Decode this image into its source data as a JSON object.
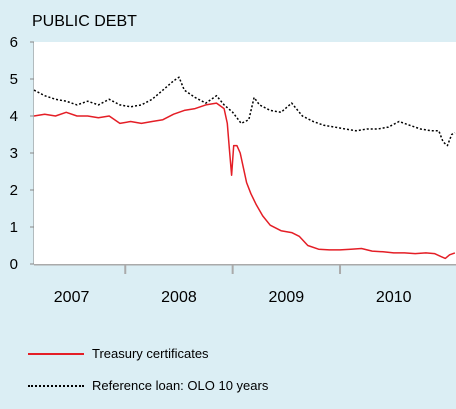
{
  "chart_data": {
    "type": "line",
    "title": "PUBLIC DEBT",
    "xlabel": "",
    "ylabel": "",
    "ylim": [
      0,
      6
    ],
    "y_ticks": [
      "0",
      "1",
      "2",
      "3",
      "4",
      "5",
      "6"
    ],
    "xlim": [
      2006.65,
      2010.58
    ],
    "x_ticks": [
      {
        "label": "2007",
        "pos": 2007.0
      },
      {
        "label": "2008",
        "pos": 2008.0
      },
      {
        "label": "2009",
        "pos": 2009.0
      },
      {
        "label": "2010",
        "pos": 2010.0
      }
    ],
    "x_dividers": [
      2007.5,
      2008.5,
      2009.5
    ],
    "grid": false,
    "legend_position": "bottom",
    "series": [
      {
        "name": "Treasury certificates",
        "color": "#e41e26",
        "style": "solid",
        "points": [
          [
            2006.65,
            4.0
          ],
          [
            2006.75,
            4.05
          ],
          [
            2006.85,
            4.0
          ],
          [
            2006.95,
            4.1
          ],
          [
            2007.05,
            4.0
          ],
          [
            2007.15,
            4.0
          ],
          [
            2007.25,
            3.95
          ],
          [
            2007.35,
            4.0
          ],
          [
            2007.45,
            3.8
          ],
          [
            2007.55,
            3.85
          ],
          [
            2007.65,
            3.8
          ],
          [
            2007.75,
            3.85
          ],
          [
            2007.85,
            3.9
          ],
          [
            2007.95,
            4.05
          ],
          [
            2008.05,
            4.15
          ],
          [
            2008.15,
            4.2
          ],
          [
            2008.25,
            4.3
          ],
          [
            2008.35,
            4.35
          ],
          [
            2008.42,
            4.2
          ],
          [
            2008.45,
            3.8
          ],
          [
            2008.47,
            3.1
          ],
          [
            2008.49,
            2.4
          ],
          [
            2008.51,
            3.2
          ],
          [
            2008.54,
            3.2
          ],
          [
            2008.57,
            3.0
          ],
          [
            2008.6,
            2.6
          ],
          [
            2008.63,
            2.2
          ],
          [
            2008.67,
            1.9
          ],
          [
            2008.72,
            1.6
          ],
          [
            2008.78,
            1.3
          ],
          [
            2008.85,
            1.05
          ],
          [
            2008.95,
            0.9
          ],
          [
            2009.05,
            0.85
          ],
          [
            2009.12,
            0.75
          ],
          [
            2009.2,
            0.5
          ],
          [
            2009.3,
            0.4
          ],
          [
            2009.4,
            0.38
          ],
          [
            2009.5,
            0.38
          ],
          [
            2009.6,
            0.4
          ],
          [
            2009.7,
            0.42
          ],
          [
            2009.8,
            0.35
          ],
          [
            2009.9,
            0.33
          ],
          [
            2010.0,
            0.3
          ],
          [
            2010.1,
            0.3
          ],
          [
            2010.2,
            0.28
          ],
          [
            2010.3,
            0.3
          ],
          [
            2010.38,
            0.28
          ],
          [
            2010.44,
            0.2
          ],
          [
            2010.48,
            0.15
          ],
          [
            2010.52,
            0.25
          ],
          [
            2010.57,
            0.3
          ]
        ]
      },
      {
        "name": "Reference loan: OLO 10 years",
        "color": "#000000",
        "style": "dotted",
        "points": [
          [
            2006.65,
            4.7
          ],
          [
            2006.75,
            4.55
          ],
          [
            2006.85,
            4.45
          ],
          [
            2006.95,
            4.4
          ],
          [
            2007.05,
            4.3
          ],
          [
            2007.15,
            4.4
          ],
          [
            2007.25,
            4.3
          ],
          [
            2007.35,
            4.45
          ],
          [
            2007.45,
            4.3
          ],
          [
            2007.55,
            4.25
          ],
          [
            2007.65,
            4.3
          ],
          [
            2007.75,
            4.45
          ],
          [
            2007.85,
            4.7
          ],
          [
            2007.95,
            4.95
          ],
          [
            2008.0,
            5.05
          ],
          [
            2008.05,
            4.7
          ],
          [
            2008.15,
            4.5
          ],
          [
            2008.25,
            4.35
          ],
          [
            2008.35,
            4.55
          ],
          [
            2008.42,
            4.3
          ],
          [
            2008.5,
            4.1
          ],
          [
            2008.58,
            3.8
          ],
          [
            2008.65,
            3.9
          ],
          [
            2008.7,
            4.5
          ],
          [
            2008.75,
            4.3
          ],
          [
            2008.85,
            4.15
          ],
          [
            2008.95,
            4.1
          ],
          [
            2009.05,
            4.35
          ],
          [
            2009.15,
            4.0
          ],
          [
            2009.25,
            3.85
          ],
          [
            2009.35,
            3.75
          ],
          [
            2009.45,
            3.7
          ],
          [
            2009.55,
            3.65
          ],
          [
            2009.65,
            3.6
          ],
          [
            2009.75,
            3.65
          ],
          [
            2009.85,
            3.65
          ],
          [
            2009.95,
            3.7
          ],
          [
            2010.05,
            3.85
          ],
          [
            2010.15,
            3.75
          ],
          [
            2010.25,
            3.65
          ],
          [
            2010.35,
            3.6
          ],
          [
            2010.42,
            3.6
          ],
          [
            2010.46,
            3.3
          ],
          [
            2010.5,
            3.2
          ],
          [
            2010.54,
            3.5
          ],
          [
            2010.57,
            3.55
          ]
        ]
      }
    ]
  }
}
